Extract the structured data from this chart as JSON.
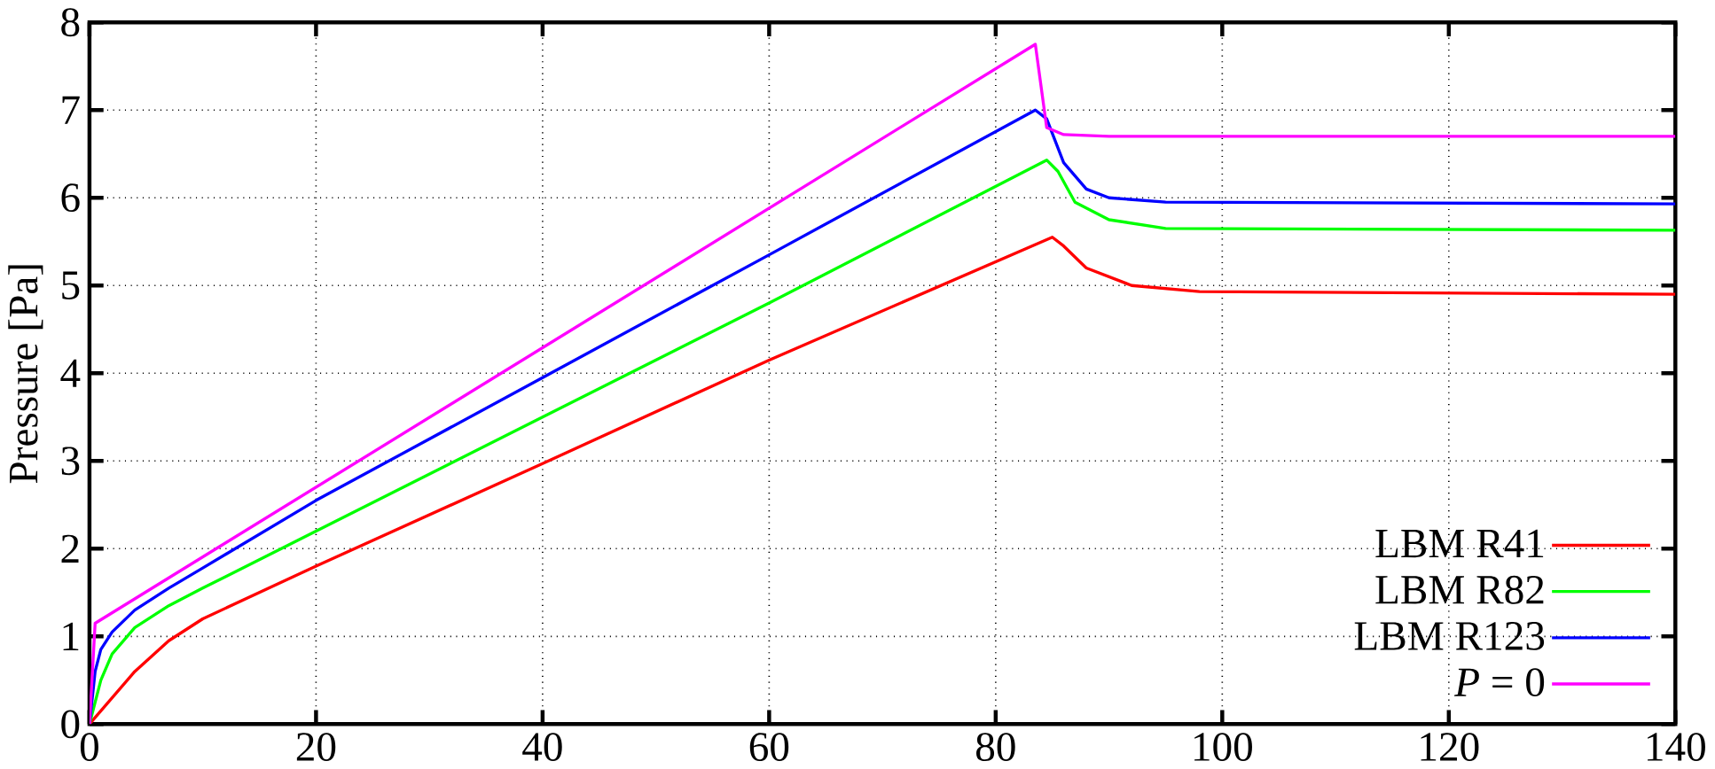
{
  "chart_data": {
    "type": "line",
    "ylabel": "Pressure [Pa]",
    "xlim": [
      0,
      140
    ],
    "ylim": [
      0,
      8
    ],
    "xticks": [
      0,
      20,
      40,
      60,
      80,
      100,
      120,
      140
    ],
    "yticks": [
      0,
      1,
      2,
      3,
      4,
      5,
      6,
      7,
      8
    ],
    "grid": true,
    "legend": "bottom right",
    "marker": "none",
    "line_style": "solid",
    "series": [
      {
        "name": "LBM R41",
        "color": "#ff0000",
        "x": [
          0,
          2,
          4,
          7,
          10,
          15,
          20,
          40,
          60,
          85,
          86,
          88,
          92,
          98,
          140
        ],
        "values": [
          0,
          0.3,
          0.6,
          0.95,
          1.2,
          1.5,
          1.8,
          2.97,
          4.15,
          5.55,
          5.45,
          5.2,
          5.0,
          4.93,
          4.9
        ]
      },
      {
        "name": "LBM R82",
        "color": "#00ff00",
        "x": [
          0,
          1,
          2,
          4,
          7,
          10,
          20,
          40,
          60,
          84.5,
          85.5,
          87,
          90,
          95,
          140
        ],
        "values": [
          0,
          0.5,
          0.8,
          1.1,
          1.35,
          1.55,
          2.2,
          3.5,
          4.8,
          6.43,
          6.3,
          5.95,
          5.75,
          5.65,
          5.63
        ]
      },
      {
        "name": "LBM R123",
        "color": "#0000ff",
        "x": [
          0,
          0.5,
          1,
          2,
          4,
          7,
          10,
          20,
          40,
          60,
          83.5,
          84.5,
          86,
          88,
          90,
          95,
          140
        ],
        "values": [
          0,
          0.6,
          0.85,
          1.05,
          1.3,
          1.55,
          1.78,
          2.55,
          3.95,
          5.35,
          7.0,
          6.9,
          6.4,
          6.1,
          6.0,
          5.95,
          5.93
        ]
      },
      {
        "name": "*P* = 0",
        "color": "#ff00ff",
        "x": [
          0,
          0.5,
          83.5,
          84.5,
          86,
          90,
          140
        ],
        "values": [
          0,
          1.15,
          7.75,
          6.8,
          6.72,
          6.7,
          6.7
        ]
      }
    ]
  }
}
